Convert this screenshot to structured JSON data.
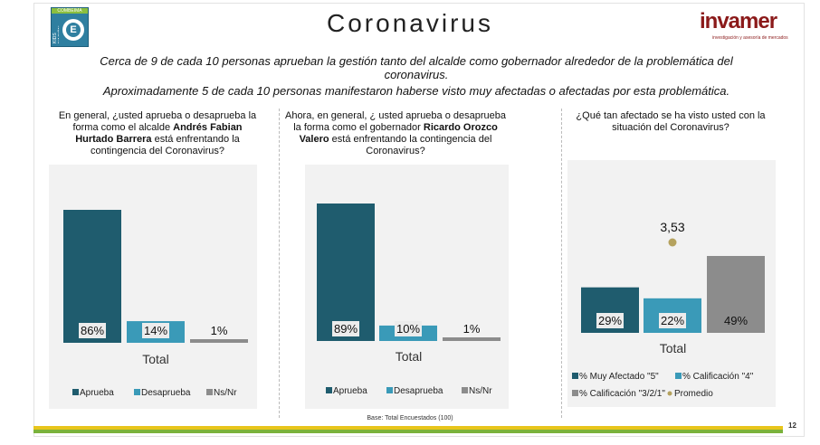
{
  "header": {
    "title": "Coronavirus",
    "left_logo": {
      "tag": "COMBEIMA",
      "side_text": "KIDS NACIÓN",
      "letter": "E"
    },
    "brand": {
      "name": "invamer",
      "subtitle": "investigación y asesoría de mercados"
    }
  },
  "headline": {
    "line1": "Cerca de 9 de cada 10 personas aprueban la gestión tanto del alcalde como gobernador alrededor de la problemática del",
    "line2": "coronavirus.",
    "line3": "Aproximadamente 5 de cada 10 personas manifestaron haberse visto muy afectadas o afectadas por esta problemática."
  },
  "questions": {
    "q1_a": "En general, ¿usted aprueba o desaprueba la",
    "q1_b": "forma como el alcalde ",
    "q1_bold1": "Andrés Fabian",
    "q1_bold2": "Hurtado Barrera",
    "q1_c": " está enfrentando la",
    "q1_d": "contingencia del Coronavirus?",
    "q2_a": "Ahora, en general, ¿ usted aprueba o desaprueba",
    "q2_b": "la forma como el gobernador ",
    "q2_bold1": "Ricardo Orozco",
    "q2_bold2": "Valero",
    "q2_c": " está enfrentando la contingencia del",
    "q2_d": "Coronavirus?",
    "q3_a": "¿Qué tan afectado se ha visto usted con la",
    "q3_b": "situación del Coronavirus?"
  },
  "footer": {
    "base": "Base: Total Encuestados (100)",
    "page": "12"
  },
  "colors": {
    "dark_teal": "#1f5c6e",
    "light_teal": "#3a9ab8",
    "gray": "#8c8c8c",
    "promedio": "#b5a25e"
  },
  "chart_data": [
    {
      "type": "bar",
      "categories": [
        "Total"
      ],
      "series": [
        {
          "name": "Aprueba",
          "values": [
            86
          ],
          "label": "86%"
        },
        {
          "name": "Desaprueba",
          "values": [
            14
          ],
          "label": "14%"
        },
        {
          "name": "Ns/Nr",
          "values": [
            1
          ],
          "label": "1%"
        }
      ],
      "xlabel": "Total",
      "ylim": [
        0,
        100
      ],
      "legend": "bottom"
    },
    {
      "type": "bar",
      "categories": [
        "Total"
      ],
      "series": [
        {
          "name": "Aprueba",
          "values": [
            89
          ],
          "label": "89%"
        },
        {
          "name": "Desaprueba",
          "values": [
            10
          ],
          "label": "10%"
        },
        {
          "name": "Ns/Nr",
          "values": [
            1
          ],
          "label": "1%"
        }
      ],
      "xlabel": "Total",
      "ylim": [
        0,
        100
      ],
      "legend": "bottom"
    },
    {
      "type": "bar",
      "categories": [
        "Total"
      ],
      "series": [
        {
          "name": "% Muy Afectado \"5\"",
          "values": [
            29
          ],
          "label": "29%"
        },
        {
          "name": "% Calificación \"4\"",
          "values": [
            22
          ],
          "label": "22%"
        },
        {
          "name": "% Calificación \"3/2/1\"",
          "values": [
            49
          ],
          "label": "49%"
        }
      ],
      "promedio": {
        "name": "Promedio",
        "value": 3.53,
        "label": "3,53"
      },
      "xlabel": "Total",
      "ylim": [
        0,
        100
      ],
      "legend": "bottom"
    }
  ]
}
